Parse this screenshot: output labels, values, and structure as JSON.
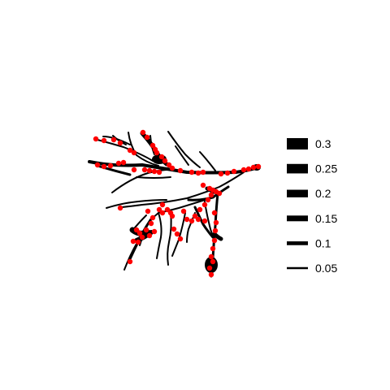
{
  "figure": {
    "type": "neuron-morphology-plot",
    "branch_color": "#000000",
    "marker_color": "#ff0000",
    "background": "#ffffff"
  },
  "legend": {
    "title": "",
    "items": [
      {
        "label": "0.3",
        "value": 0.3
      },
      {
        "label": "0.25",
        "value": 0.25
      },
      {
        "label": "0.2",
        "value": 0.2
      },
      {
        "label": "0.15",
        "value": 0.15
      },
      {
        "label": "0.1",
        "value": 0.1
      },
      {
        "label": "0.05",
        "value": 0.05
      }
    ]
  }
}
